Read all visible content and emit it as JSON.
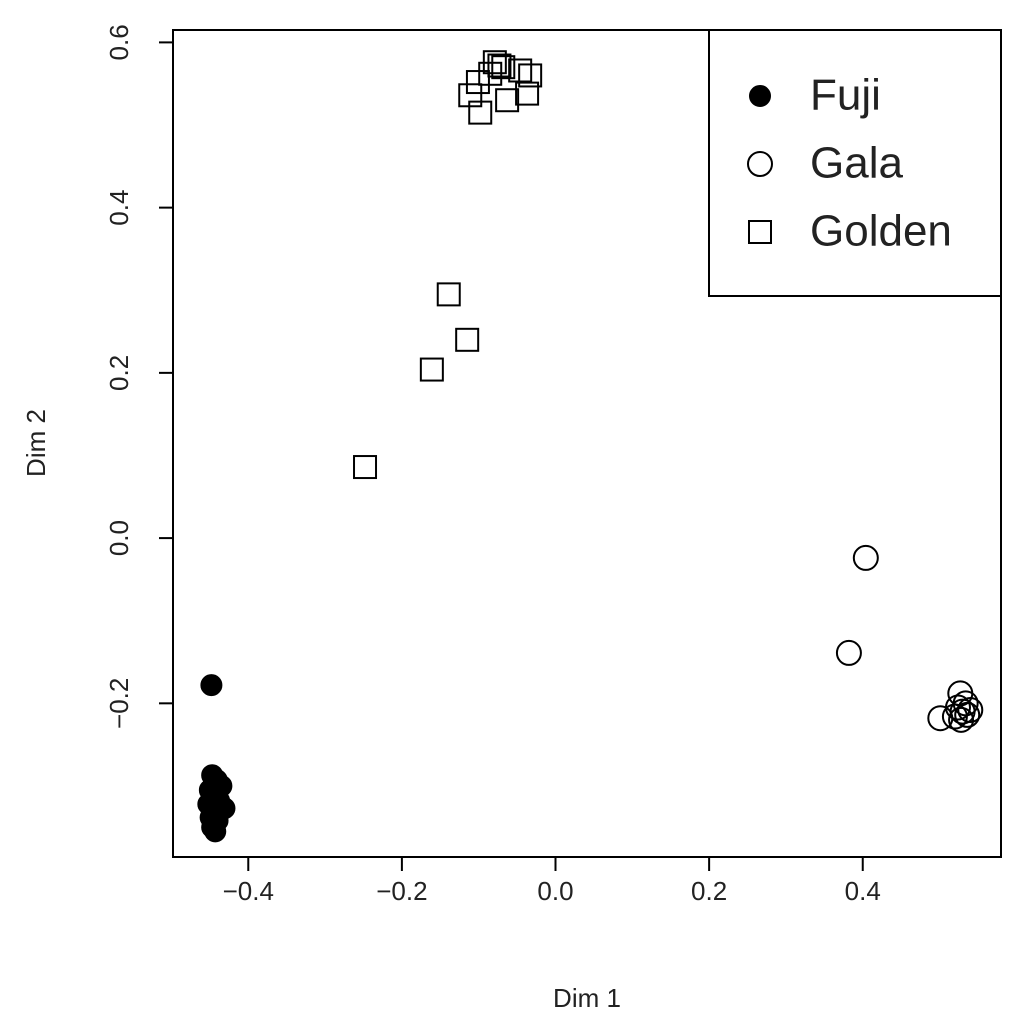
{
  "chart_data": {
    "type": "scatter",
    "x_label": "Dim 1",
    "y_label": "Dim 2",
    "xlim": [
      -0.498,
      0.58
    ],
    "ylim": [
      -0.386,
      0.615
    ],
    "xticks": [
      {
        "value": -0.4,
        "label": "−0.4"
      },
      {
        "value": -0.2,
        "label": "−0.2"
      },
      {
        "value": 0,
        "label": "0.0"
      },
      0.2,
      0.4
    ],
    "yticks": [
      {
        "value": -0.2,
        "label": "−0.2"
      },
      {
        "value": 0,
        "label": "0.0"
      },
      0.2,
      0.4,
      0.6
    ],
    "legend": "top-right",
    "series": [
      {
        "name": "Fuji",
        "color": "#000000",
        "marker": "circle",
        "fill": "#000000",
        "x": [
          -0.448,
          -0.447,
          -0.441,
          -0.435,
          -0.45,
          -0.446,
          -0.438,
          -0.452,
          -0.431,
          -0.445,
          -0.449,
          -0.44,
          -0.447,
          -0.443
        ],
        "y": [
          -0.178,
          -0.287,
          -0.293,
          -0.3,
          -0.305,
          -0.312,
          -0.318,
          -0.322,
          -0.327,
          -0.33,
          -0.338,
          -0.342,
          -0.35,
          -0.355
        ]
      },
      {
        "name": "Gala",
        "color": "#000000",
        "marker": "circle",
        "fill": "none",
        "x": [
          0.404,
          0.382,
          0.501,
          0.527,
          0.524,
          0.53,
          0.536,
          0.54,
          0.528,
          0.534,
          0.52
        ],
        "y": [
          -0.024,
          -0.139,
          -0.218,
          -0.188,
          -0.205,
          -0.21,
          -0.214,
          -0.208,
          -0.22,
          -0.2,
          -0.216
        ]
      },
      {
        "name": "Golden",
        "color": "#000000",
        "marker": "square",
        "fill": "none",
        "x": [
          -0.248,
          -0.161,
          -0.115,
          -0.139,
          -0.098,
          -0.111,
          -0.079,
          -0.073,
          -0.037,
          -0.063,
          -0.033,
          -0.046,
          -0.101,
          -0.085,
          -0.068
        ],
        "y": [
          0.086,
          0.204,
          0.24,
          0.295,
          0.515,
          0.536,
          0.576,
          0.572,
          0.538,
          0.53,
          0.56,
          0.566,
          0.552,
          0.562,
          0.57
        ]
      }
    ]
  }
}
